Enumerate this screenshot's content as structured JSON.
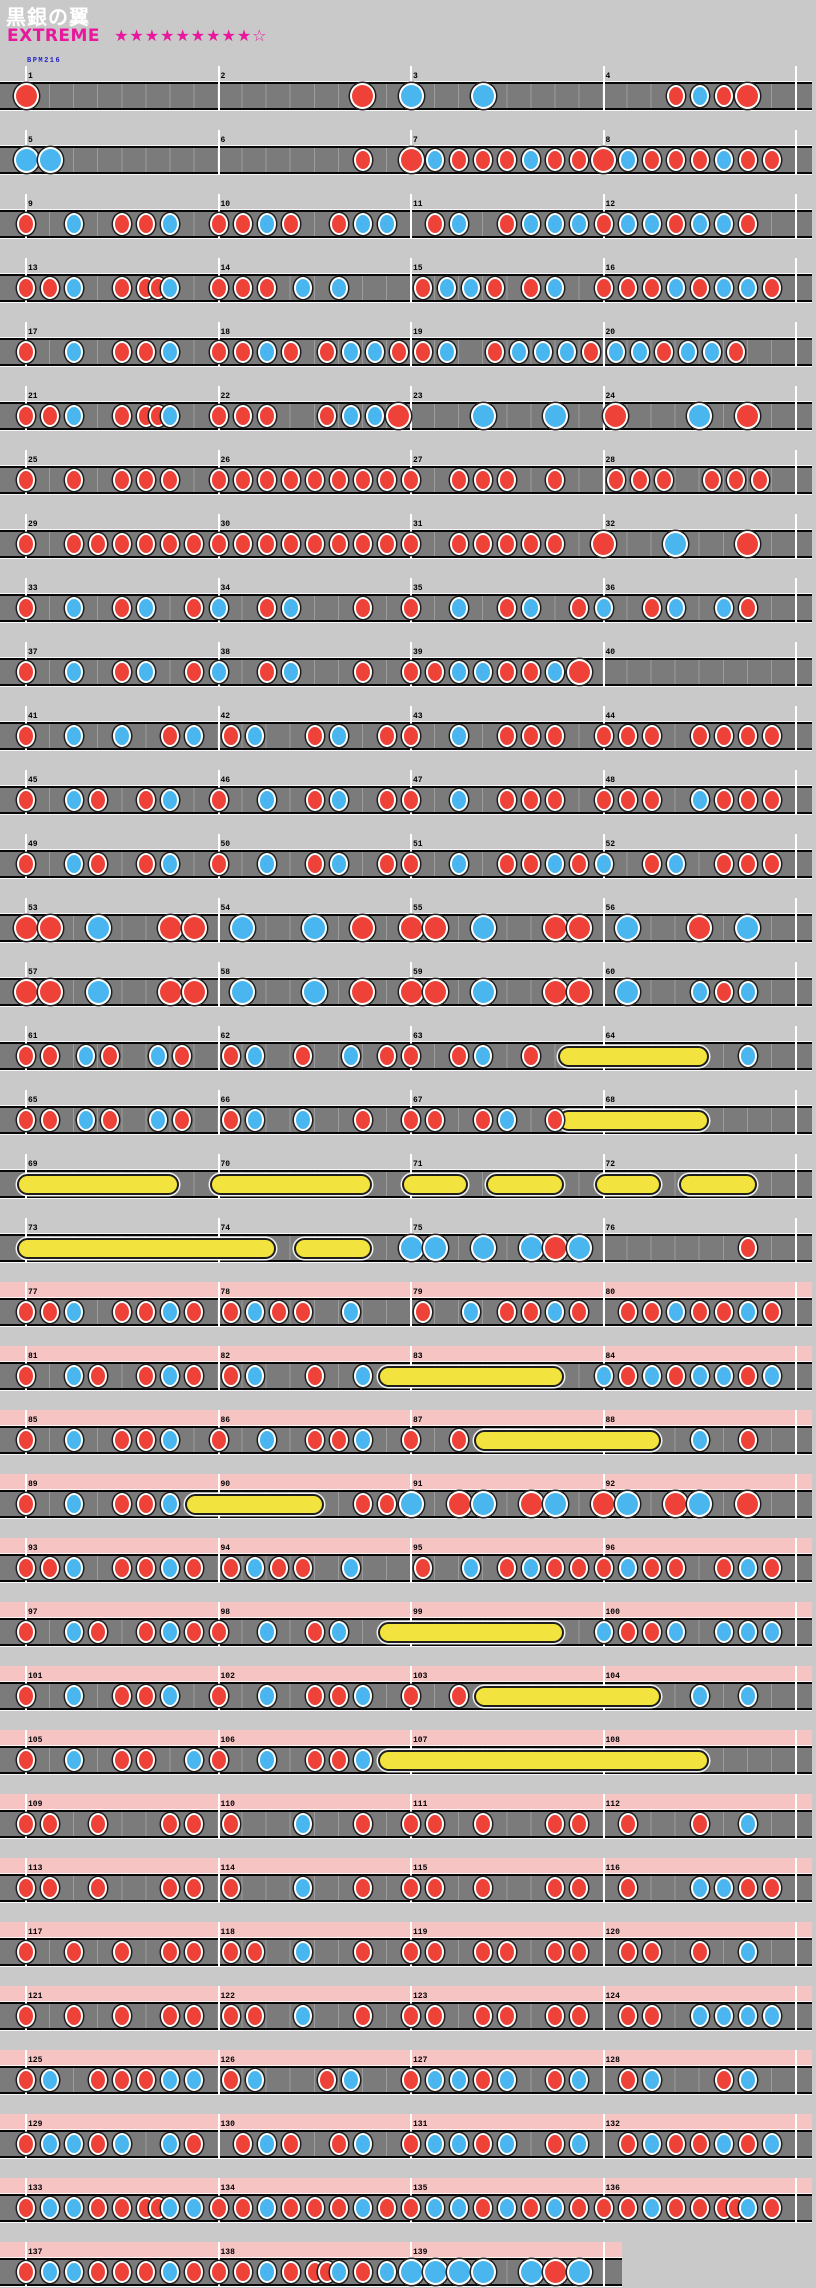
{
  "header": {
    "title": "黒銀の翼",
    "difficulty": "EXTREME",
    "stars": "★★★★★★★★★☆",
    "bpm": "BPM216"
  },
  "colors": {
    "background": "#c9c9c9",
    "lane_gray": "#7b7b7b",
    "grid_line": "#9c9c9c",
    "measure_line": "#ffffff",
    "gogo_pink": "#f7c4c4",
    "don_red": "#ee4138",
    "ka_blue": "#49b6ef",
    "roll_yellow": "#f2e33e",
    "accent_magenta": "#e8189c",
    "bpm_blue": "#2323c8",
    "number_black": "#000000"
  },
  "chart": {
    "total_measures": 139,
    "measures_per_row": 4,
    "gogo_from_measure": 77,
    "note_legend": {
      "d": "small-don-red",
      "D": "big-don-red",
      "k": "small-ka-blue",
      "K": "big-ka-blue"
    },
    "measures": [
      "D0",
      "D.75",
      "K0|K.375",
      "d.375|k.5|d.625|D.75",
      "K0|K.125",
      "d.75",
      "D0|k.125|d.25|d.375|d.5|k.625|d.75|d.875",
      "D0|k.125|d.25|d.375|d.5|k.625|d.75|d.875",
      "d0|k.25|d.5|d.625|k.75",
      "d0|d.125|k.25|d.375|d.625|k.75|k.875",
      "d.125|k.25|d.5|k.625|k.75|k.875",
      "d0|k.125|k.25|d.375|k.5|k.625|d.75",
      "d0|d.125|k.25|d.5|d.625|d.6875|k.75",
      "d0|d.125|d.25|k.4375|k.625",
      "d.0625|k.1875|k.3125|d.4375|d.625|k.75",
      "d0|d.125|d.25|k.375|d.5|k.625|k.75|d.875",
      "d0|k.25|d.5|d.625|k.75",
      "d0|d.125|k.25|d.375|d.5625|k.6875|k.8125|d.9375",
      "d.0625|k.1875|d.4375|k.5625|k.6875|k.8125|d.9375",
      "k.0625|k.1875|d.3125|k.4375|k.5625|d.6875",
      "d0|d.125|k.25|d.5|d.625|d.6875|k.75",
      "d0|d.125|d.25|d.5625|k.6875|k.8125|D.9375",
      "K.375|K.75",
      "D.0625|K.5|D.75",
      "d0|d.25|d.5|d.625|d.75",
      "d0|d.125|d.25|d.375|d.5|d.625|d.75|d.875",
      "d0|d.25|d.375|d.5|d.75",
      "d.0625|d.1875|d.3125|d.5625|d.6875|d.8125",
      "d0|d.25|d.375|d.5|d.625|d.75|d.875",
      "d0|d.125|d.25|d.375|d.5|d.625|d.75|d.875",
      "d0|d.25|d.375|d.5|d.625|d.75",
      "D0|K.375|D.75",
      "d0|k.25|d.5|k.625|d.875",
      "k0|d.25|k.375|d.75",
      "d0|k.25|d.5|k.625|d.875",
      "k0|d.25|k.375|k.625|d.75",
      "d0|k.25|d.5|k.625|d.875",
      "k0|d.25|k.375|d.75",
      "d0|d.125|k.25|k.375|d.5|d.625|k.75|D.875",
      "",
      "d0|k.25|k.5|d.75|k.875",
      "d.0625|k.1875|d.5|k.625|d.875",
      "d0|k.25|d.5|d.625|d.75",
      "d0|d.125|d.25|d.5|d.625|d.75|d.875",
      "d0|k.25|d.375|d.625|k.75",
      "d0|k.25|d.5|k.625|d.875",
      "d0|k.25|d.5|d.625|d.75",
      "d0|d.125|d.25|k.5|d.625|d.75|d.875",
      "d0|k.25|d.375|d.625|k.75",
      "d0|k.25|d.5|k.625|d.875",
      "d0|k.25|d.5|d.625|k.75|d.875",
      "k0|d.25|k.375|d.625|d.75|d.875",
      "D0|D.125|K.375|D.75|D.875",
      "K.125|K.5|D.75",
      "D0|D.125|K.375|D.75|D.875",
      "K.125|D.5|K.75",
      "D0|D.125|K.375|D.75|D.875",
      "K.125|K.5|D.75",
      "D0|D.125|K.375|D.75|D.875",
      "K.125|k.5|d.625|k.75",
      "d0|d.125|k.3125|d.4375|k.6875|d.8125",
      "d.0625|k.1875|d.4375|k.6875|d.875",
      "d0|d.25|k.375|d.625",
      "k.75",
      "d0|d.125|k.3125|d.4375|k.6875|d.8125",
      "d.0625|k.1875|k.4375|d.75",
      "d0|d.125|d.375|k.5|d.75",
      "",
      "",
      "",
      "",
      "",
      "",
      "",
      "K0|K.125|K.375|K.625|D.75|K.875",
      "d.75",
      "d0|d.125|k.25|d.5|d.625|k.75|d.875",
      "d.0625|k.1875|d.3125|d.4375|k.6875",
      "d.0625|k.3125|d.5|d.625|k.75|d.875",
      "d.125|d.25|k.375|d.5|d.625|k.75|d.875",
      "d0|k.25|d.375|d.625|k.75|d.875",
      "d.0625|k.1875|d.5|k.75",
      "",
      "k0|d.125|k.25|d.375|k.5|k.625|d.75|k.875",
      "d0|k.25|d.5|d.625|k.75",
      "d0|k.25|d.5|d.625|k.75",
      "d0|d.25",
      "k.5|d.75",
      "d0|k.25|d.5|d.625|k.75",
      "d.75|d.875",
      "K0|D.25|K.375|D.625|K.75",
      "D0|K.125|D.375|K.5|D.75",
      "d0|d.125|k.25|d.5|d.625|k.75|d.875",
      "d.0625|k.1875|d.3125|d.4375|k.6875",
      "d.0625|k.3125|d.5|k.625|d.75|d.875",
      "d0|k.125|d.25|d.375|d.625|k.75|d.875",
      "d0|k.25|d.375|d.625|k.75|d.875",
      "d0|k.25|d.5|k.625",
      "",
      "k0|d.125|d.25|k.375|k.625|k.75|k.875",
      "d0|k.25|d.5|d.625|k.75",
      "d0|k.25|d.5|d.625|k.75",
      "d0|d.25",
      "k.5|k.75",
      "d0|k.25|d.5|d.625|k.875",
      "d0|k.25|d.5|d.625|k.75",
      "",
      "",
      "d0|d.125|d.375|d.75|d.875",
      "d.0625|k.4375|d.75",
      "d0|d.125|d.375|d.75|d.875",
      "d.125|d.5|k.75",
      "d0|d.125|d.375|d.75|d.875",
      "d.0625|k.4375|d.75",
      "d0|d.125|d.375|d.75|d.875",
      "d.125|k.5|k.625|d.75|d.875",
      "d0|d.25|d.5|d.75|d.875",
      "d.0625|d.1875|k.4375|d.75",
      "d0|d.125|d.375|d.5|d.75|d.875",
      "d.125|d.25|d.5|k.75",
      "d0|d.25|d.5|d.75|d.875",
      "d.0625|d.1875|k.4375|d.75",
      "d0|d.125|d.375|d.5|d.75|d.875",
      "d.125|d.25|k.5|k.625|k.75|k.875",
      "d0|k.125|d.375|d.5|d.625|k.75|k.875",
      "d.0625|k.1875|d.5625|k.6875",
      "d0|k.125|k.25|d.375|k.5|d.75|k.875",
      "d.125|k.25|d.625|k.75",
      "d0|k.125|k.25|d.375|k.5|k.75|d.875",
      "d.125|k.25|d.375|d.625|k.75",
      "d0|k.125|k.25|d.375|k.5|d.75|k.875",
      "d.125|k.25|d.375|d.5|k.625|d.75|k.875",
      "d0|k.125|k.25|d.375|d.5|d.625|d.6875|k.75|k.875",
      "d0|d.125|k.25|d.375|d.5|d.625|k.75|d.875",
      "d0|k.125|k.25|d.375|k.5|d.625|k.75|d.875",
      "d0|d.125|k.25|d.375|d.5|d.625|d.6875|k.75|d.875",
      "d0|k.125|k.25|d.375|d.5|d.625|k.75|d.875",
      "d0|d.125|k.25|d.375|d.5|d.5625|k.625|d.75|k.875",
      "K0|K.125|K.25|K.375|K.625|D.75|K.875"
    ],
    "drumrolls": [
      [
        63,
        0.8125,
        64,
        0.5
      ],
      [
        67,
        0.8125,
        68,
        0.5
      ],
      [
        69,
        0,
        69,
        0.75
      ],
      [
        70,
        0,
        70,
        0.75
      ],
      [
        71,
        0,
        71,
        0.25
      ],
      [
        71,
        0.4375,
        71,
        0.75
      ],
      [
        72,
        0,
        72,
        0.25
      ],
      [
        72,
        0.4375,
        72,
        0.75
      ],
      [
        73,
        0,
        74,
        0.25
      ],
      [
        74,
        0.4375,
        74,
        0.75
      ],
      [
        82,
        0.875,
        83,
        0.75
      ],
      [
        87,
        0.375,
        88,
        0.25
      ],
      [
        89,
        0.875,
        90,
        0.5
      ],
      [
        98,
        0.875,
        99,
        0.75
      ],
      [
        103,
        0.375,
        104,
        0.25
      ],
      [
        106,
        0.875,
        108,
        0.5
      ]
    ]
  }
}
